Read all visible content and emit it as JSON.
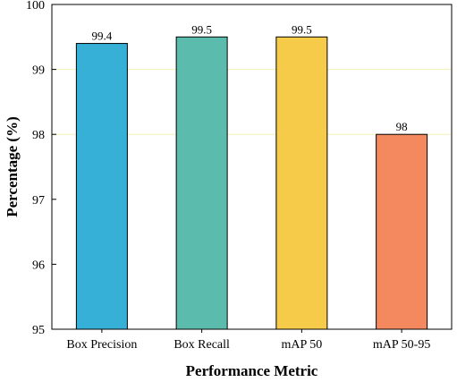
{
  "chart_data": {
    "type": "bar",
    "categories": [
      "Box Precision",
      "Box Recall",
      "mAP 50",
      "mAP 50-95"
    ],
    "values": [
      99.4,
      99.5,
      99.5,
      98
    ],
    "value_labels": [
      "99.4",
      "99.5",
      "99.5",
      "98"
    ],
    "colors": [
      "#36b0d6",
      "#5bbcad",
      "#f6cb4a",
      "#f4885e"
    ],
    "xlabel": "Performance Metric",
    "ylabel": "Percentage (%)",
    "ylim": [
      95,
      100
    ],
    "yticks": [
      95,
      96,
      97,
      98,
      99,
      100
    ],
    "gridlines": [
      99,
      98
    ],
    "grid_color": "#f3f0b5",
    "grid": true,
    "legend": false
  }
}
